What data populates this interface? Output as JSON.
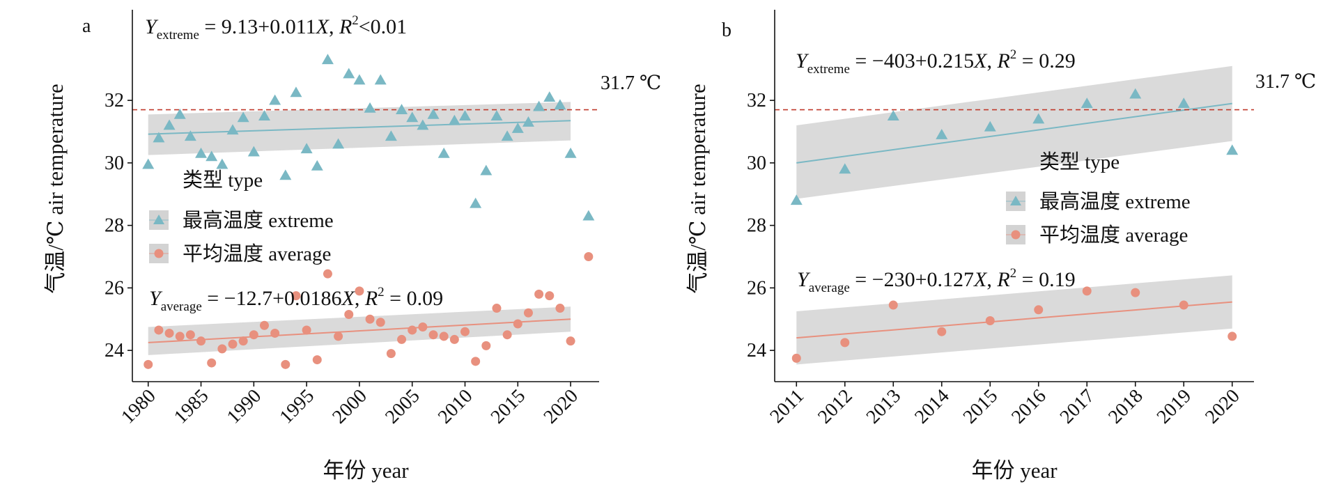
{
  "colors": {
    "extreme": "#7ab8c4",
    "average": "#e8907e",
    "band": "#d3d3d3",
    "ref_line": "#c0392b"
  },
  "chart_data": [
    {
      "type": "scatter",
      "panel_label": "a",
      "xlabel": "年份 year",
      "ylabel": "气温/℃ air temperature",
      "xlim": [
        1978.5,
        2022.7
      ],
      "ylim": [
        23,
        34.9
      ],
      "xticks": [
        1980,
        1985,
        1990,
        1995,
        2000,
        2005,
        2010,
        2015,
        2020
      ],
      "yticks": [
        24,
        26,
        28,
        30,
        32
      ],
      "reference_line": {
        "y": 31.7,
        "label": "31.7 ℃"
      },
      "equations": {
        "extreme": {
          "y": "Y",
          "sub": "extreme",
          "rest": " = 9.13+0.011",
          "x": "X",
          "r2_pre": ", ",
          "r2": "R",
          "r2_sup": "2",
          "r2_val": "<0.01"
        },
        "average": {
          "y": "Y",
          "sub": "average",
          "rest": " = −12.7+0.0186",
          "x": "X",
          "r2_pre": ", ",
          "r2": "R",
          "r2_sup": "2",
          "r2_val": " = 0.09"
        }
      },
      "legend": {
        "title": "类型 type",
        "entries": [
          "最高温度 extreme",
          "平均温度 average"
        ],
        "placement": "center-left"
      },
      "series": [
        {
          "name": "最高温度 extreme",
          "marker": "triangle",
          "x": [
            1980,
            1981,
            1982,
            1983,
            1984,
            1985,
            1986,
            1987,
            1988,
            1989,
            1990,
            1991,
            1992,
            1993,
            1994,
            1995,
            1996,
            1997,
            1998,
            1999,
            2000,
            2001,
            2002,
            2003,
            2004,
            2005,
            2006,
            2007,
            2008,
            2009,
            2010,
            2011,
            2012,
            2013,
            2014,
            2015,
            2016,
            2017,
            2018,
            2019,
            2020,
            2021.7
          ],
          "y": [
            29.95,
            30.8,
            31.2,
            31.55,
            30.85,
            30.3,
            30.2,
            29.95,
            31.05,
            31.45,
            30.35,
            31.5,
            32.0,
            29.6,
            32.25,
            30.45,
            29.9,
            33.3,
            30.6,
            32.85,
            32.65,
            31.75,
            32.65,
            30.85,
            31.7,
            31.45,
            31.2,
            31.55,
            30.3,
            31.35,
            31.5,
            28.7,
            29.75,
            31.5,
            30.85,
            31.1,
            31.3,
            31.8,
            32.1,
            31.85,
            30.3,
            28.3
          ],
          "fit": {
            "x": [
              1980,
              2020
            ],
            "y": [
              30.92,
              31.35
            ],
            "band_hi": [
              31.55,
              31.95
            ],
            "band_lo": [
              30.25,
              30.72
            ]
          }
        },
        {
          "name": "平均温度 average",
          "marker": "circle",
          "x": [
            1980,
            1981,
            1982,
            1983,
            1984,
            1985,
            1986,
            1987,
            1988,
            1989,
            1990,
            1991,
            1992,
            1993,
            1994,
            1995,
            1996,
            1997,
            1998,
            1999,
            2000,
            2001,
            2002,
            2003,
            2004,
            2005,
            2006,
            2007,
            2008,
            2009,
            2010,
            2011,
            2012,
            2013,
            2014,
            2015,
            2016,
            2017,
            2018,
            2019,
            2020,
            2021.7
          ],
          "y": [
            23.55,
            24.65,
            24.55,
            24.45,
            24.5,
            24.3,
            23.6,
            24.05,
            24.2,
            24.3,
            24.5,
            24.8,
            24.55,
            23.55,
            25.75,
            24.65,
            23.7,
            26.45,
            24.45,
            25.15,
            25.9,
            25.0,
            24.9,
            23.9,
            24.35,
            24.65,
            24.75,
            24.5,
            24.45,
            24.35,
            24.6,
            23.65,
            24.15,
            25.35,
            24.5,
            24.85,
            25.2,
            25.8,
            25.75,
            25.35,
            24.3,
            27.0
          ],
          "fit": {
            "x": [
              1980,
              2020
            ],
            "y": [
              24.25,
              25.0
            ],
            "band_hi": [
              24.75,
              25.4
            ],
            "band_lo": [
              23.85,
              24.6
            ]
          }
        }
      ]
    },
    {
      "type": "scatter",
      "panel_label": "b",
      "xlabel": "年份 year",
      "ylabel": "气温/℃ air temperature",
      "xlim": [
        2010.55,
        2020.45
      ],
      "ylim": [
        23,
        34.9
      ],
      "xticks": [
        2011,
        2012,
        2013,
        2014,
        2015,
        2016,
        2017,
        2018,
        2019,
        2020
      ],
      "yticks": [
        24,
        26,
        28,
        30,
        32
      ],
      "reference_line": {
        "y": 31.7,
        "label": "31.7 ℃"
      },
      "equations": {
        "extreme": {
          "y": "Y",
          "sub": "extreme",
          "rest": " = −403+0.215",
          "x": "X",
          "r2_pre": ", ",
          "r2": "R",
          "r2_sup": "2",
          "r2_val": " = 0.29"
        },
        "average": {
          "y": "Y",
          "sub": "average",
          "rest": " = −230+0.127",
          "x": "X",
          "r2_pre": ", ",
          "r2": "R",
          "r2_sup": "2",
          "r2_val": " = 0.19"
        }
      },
      "legend": {
        "title": "类型 type",
        "entries": [
          "最高温度 extreme",
          "平均温度 average"
        ],
        "placement": "center-right"
      },
      "series": [
        {
          "name": "最高温度 extreme",
          "marker": "triangle",
          "x": [
            2011,
            2012,
            2013,
            2014,
            2015,
            2016,
            2017,
            2018,
            2019,
            2020
          ],
          "y": [
            28.8,
            29.8,
            31.5,
            30.9,
            31.15,
            31.4,
            31.9,
            32.2,
            31.9,
            30.4
          ],
          "fit": {
            "x": [
              2011,
              2020
            ],
            "y": [
              30.0,
              31.9
            ],
            "band_hi": [
              31.2,
              33.1
            ],
            "band_lo": [
              28.85,
              30.7
            ]
          }
        },
        {
          "name": "平均温度 average",
          "marker": "circle",
          "x": [
            2011,
            2012,
            2013,
            2014,
            2015,
            2016,
            2017,
            2018,
            2019,
            2020
          ],
          "y": [
            23.75,
            24.25,
            25.45,
            24.6,
            24.95,
            25.3,
            25.9,
            25.85,
            25.45,
            24.45
          ],
          "fit": {
            "x": [
              2011,
              2020
            ],
            "y": [
              24.4,
              25.55
            ],
            "band_hi": [
              25.25,
              26.4
            ],
            "band_lo": [
              23.55,
              24.7
            ]
          }
        }
      ]
    }
  ]
}
